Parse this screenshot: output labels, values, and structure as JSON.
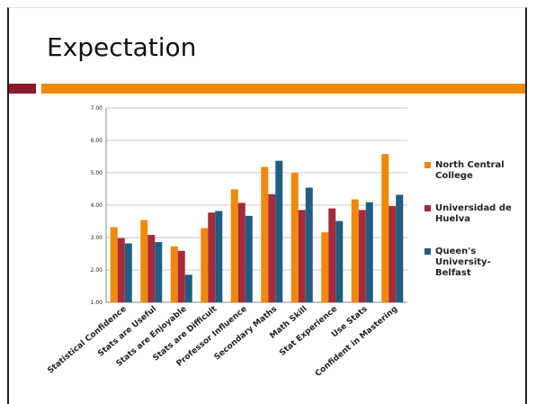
{
  "slide": {
    "title": "Expectation",
    "accent_colors": {
      "dark_red": "#8b1a2b",
      "orange": "#f0880a"
    }
  },
  "chart_data": {
    "type": "bar",
    "categories": [
      "Statistical Confidence",
      "Stats are Useful",
      "Stats are Enjoyable",
      "Stats are Difficult",
      "Professor Influence",
      "Secondary Maths",
      "Math Skill",
      "Stat Experience",
      "Use Stats",
      "Confident in Mastering"
    ],
    "series": [
      {
        "name": "North Central College",
        "color": "#f0880a",
        "values": [
          3.32,
          3.54,
          2.73,
          3.29,
          4.49,
          5.18,
          5.0,
          3.16,
          4.18,
          5.58
        ]
      },
      {
        "name": "Universidad de Huelva",
        "color": "#a52a3a",
        "values": [
          2.98,
          3.08,
          2.59,
          3.77,
          4.07,
          4.34,
          3.85,
          3.9,
          3.85,
          3.97
        ]
      },
      {
        "name": "Queen's University-Belfast",
        "color": "#1f5d82",
        "values": [
          2.82,
          2.86,
          1.85,
          3.82,
          3.67,
          5.37,
          4.54,
          3.51,
          4.09,
          4.32
        ]
      }
    ],
    "ylim": [
      1.0,
      7.0
    ],
    "yticks": [
      "1.00",
      "2.00",
      "3.00",
      "4.00",
      "5.00",
      "6.00",
      "7.00"
    ],
    "grid": true,
    "legend_position": "right"
  }
}
